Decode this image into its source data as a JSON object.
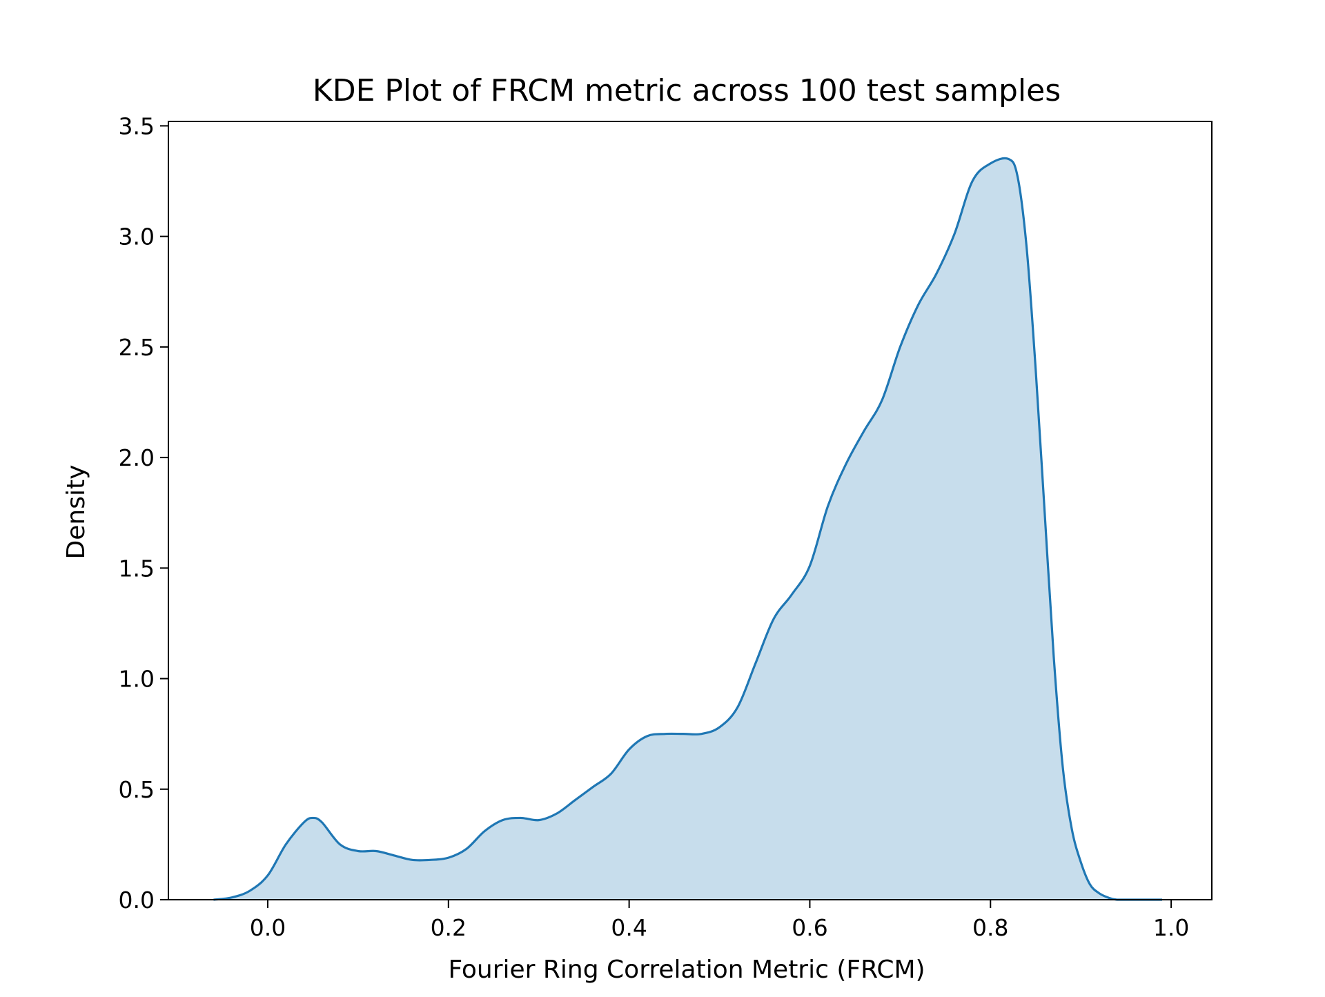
{
  "chart_data": {
    "type": "area",
    "title": "KDE Plot of FRCM metric across 100 test samples",
    "xlabel": "Fourier Ring Correlation Metric (FRCM)",
    "ylabel": "Density",
    "xlim": [
      -0.11,
      1.045
    ],
    "ylim": [
      0.0,
      3.52
    ],
    "xticks": [
      0.0,
      0.2,
      0.4,
      0.6,
      0.8,
      1.0
    ],
    "xtick_labels": [
      "0.0",
      "0.2",
      "0.4",
      "0.6",
      "0.8",
      "1.0"
    ],
    "yticks": [
      0.0,
      0.5,
      1.0,
      1.5,
      2.0,
      2.5,
      3.0,
      3.5
    ],
    "ytick_labels": [
      "0.0",
      "0.5",
      "1.0",
      "1.5",
      "2.0",
      "2.5",
      "3.0",
      "3.5"
    ],
    "grid": false,
    "series": [
      {
        "color": "#1f77b4",
        "fill_color": "#1f77b4",
        "fill_opacity": 0.25,
        "x": [
          -0.06,
          -0.04,
          -0.02,
          0.0,
          0.02,
          0.04,
          0.05,
          0.06,
          0.08,
          0.1,
          0.12,
          0.14,
          0.16,
          0.18,
          0.2,
          0.22,
          0.24,
          0.26,
          0.28,
          0.3,
          0.32,
          0.34,
          0.36,
          0.38,
          0.4,
          0.42,
          0.44,
          0.46,
          0.48,
          0.5,
          0.52,
          0.54,
          0.56,
          0.58,
          0.6,
          0.62,
          0.64,
          0.66,
          0.68,
          0.7,
          0.72,
          0.74,
          0.76,
          0.78,
          0.8,
          0.82,
          0.83,
          0.84,
          0.85,
          0.86,
          0.87,
          0.88,
          0.89,
          0.9,
          0.91,
          0.92,
          0.93,
          0.94,
          0.96,
          0.98,
          0.99
        ],
        "y": [
          0.0,
          0.01,
          0.04,
          0.11,
          0.25,
          0.35,
          0.37,
          0.35,
          0.25,
          0.22,
          0.22,
          0.2,
          0.18,
          0.18,
          0.19,
          0.23,
          0.31,
          0.36,
          0.37,
          0.36,
          0.39,
          0.45,
          0.51,
          0.57,
          0.68,
          0.74,
          0.75,
          0.75,
          0.75,
          0.78,
          0.87,
          1.07,
          1.27,
          1.38,
          1.51,
          1.78,
          1.97,
          2.12,
          2.26,
          2.5,
          2.69,
          2.83,
          3.01,
          3.25,
          3.33,
          3.35,
          3.27,
          2.95,
          2.4,
          1.75,
          1.1,
          0.6,
          0.32,
          0.17,
          0.07,
          0.03,
          0.01,
          0.0,
          0.0,
          0.0,
          0.0
        ]
      }
    ]
  }
}
